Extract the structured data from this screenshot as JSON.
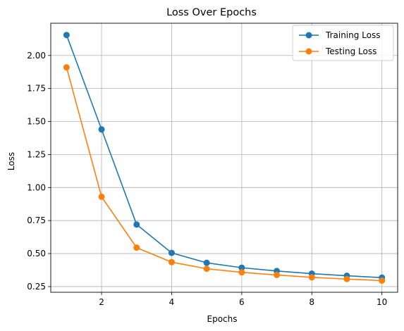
{
  "chart_data": {
    "type": "line",
    "title": "Loss Over Epochs",
    "xlabel": "Epochs",
    "ylabel": "Loss",
    "x": [
      1,
      2,
      3,
      4,
      5,
      6,
      7,
      8,
      9,
      10
    ],
    "xlim": [
      0.55,
      10.45
    ],
    "ylim": [
      0.207,
      2.244
    ],
    "xticks": [
      2,
      4,
      6,
      8,
      10
    ],
    "xtick_labels": [
      "2",
      "4",
      "6",
      "8",
      "10"
    ],
    "yticks": [
      0.25,
      0.5,
      0.75,
      1.0,
      1.25,
      1.5,
      1.75,
      2.0
    ],
    "ytick_labels": [
      "0.25",
      "0.50",
      "0.75",
      "1.00",
      "1.25",
      "1.50",
      "1.75",
      "2.00"
    ],
    "grid": true,
    "legend_position": "top-right",
    "series": [
      {
        "name": "Training Loss",
        "color": "#1f77b4",
        "marker": "circle",
        "values": [
          2.155,
          1.44,
          0.72,
          0.505,
          0.43,
          0.393,
          0.368,
          0.348,
          0.332,
          0.318
        ]
      },
      {
        "name": "Testing Loss",
        "color": "#ff7f0e",
        "marker": "circle",
        "values": [
          1.91,
          0.93,
          0.545,
          0.435,
          0.385,
          0.358,
          0.338,
          0.32,
          0.307,
          0.295
        ]
      }
    ]
  }
}
